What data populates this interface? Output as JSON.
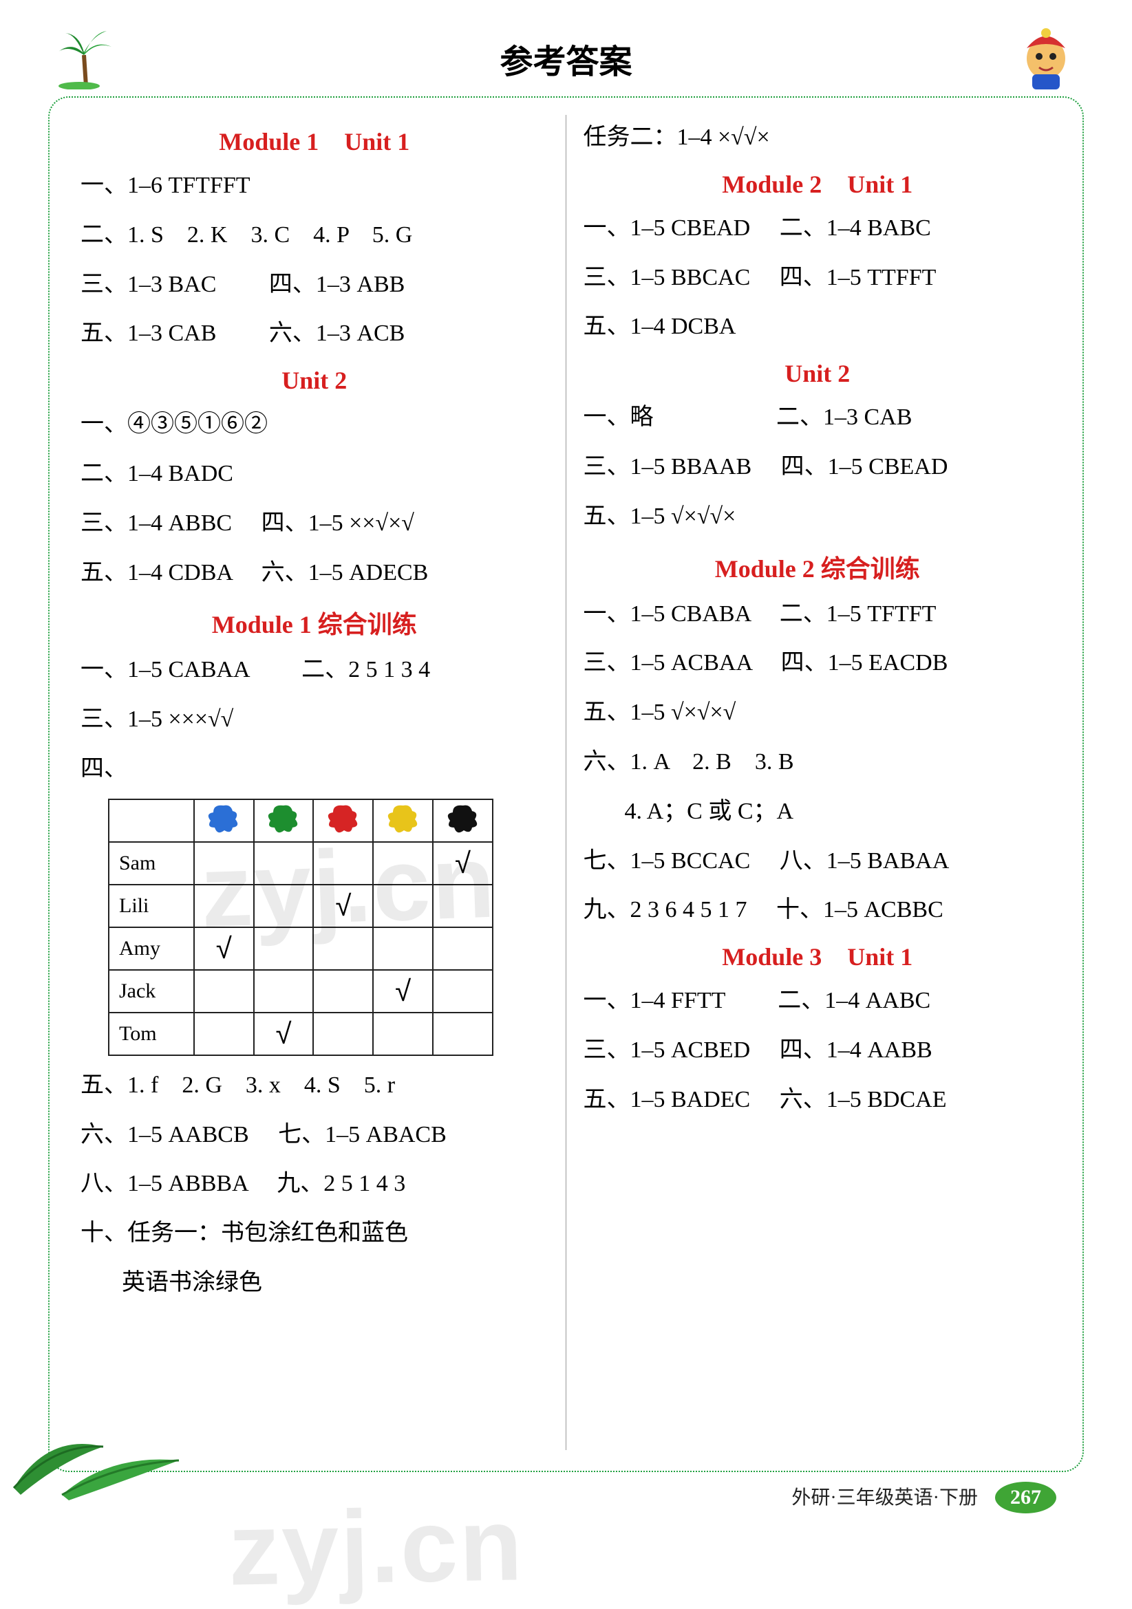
{
  "page_title": "参考答案",
  "watermark": "zyj.cn",
  "footer_text": "外研·三年级英语·下册",
  "page_number": "267",
  "headings": {
    "m1u1": {
      "module": "Module 1",
      "unit": "Unit 1"
    },
    "m1u2_unit": "Unit 2",
    "m1review": "Module 1 综合训练",
    "m2u1": {
      "module": "Module 2",
      "unit": "Unit 1"
    },
    "m2u2_unit": "Unit 2",
    "m2review": "Module 2 综合训练",
    "m3u1": {
      "module": "Module 3",
      "unit": "Unit 1"
    }
  },
  "left": {
    "l1": "一、1–6 TFTFFT",
    "l2": "二、1. S　2. K　3. C　4. P　5. G",
    "l3a": "三、1–3 BAC",
    "l3b": "四、1–3 ABB",
    "l4a": "五、1–3 CAB",
    "l4b": "六、1–3 ACB",
    "u2_l1": "一、④③⑤①⑥②",
    "u2_l2": "二、1–4 BADC",
    "u2_l3a": "三、1–4 ABBC",
    "u2_l3b": "四、1–5 ××√×√",
    "u2_l4a": "五、1–4 CDBA",
    "u2_l4b": "六、1–5 ADECB",
    "rv_l1a": "一、1–5 CABAA",
    "rv_l1b": "二、2 5 1 3 4",
    "rv_l2": "三、1–5 ×××√√",
    "rv_l3_prefix": "四、",
    "rv_l5": "五、1. f　2. G　3. x　4. S　5. r",
    "rv_l6a": "六、1–5 AABCB",
    "rv_l6b": "七、1–5 ABACB",
    "rv_l7a": "八、1–5 ABBBA",
    "rv_l7b": "九、2 5 1 4 3",
    "rv_l8": "十、任务一：书包涂红色和蓝色",
    "rv_l9": "英语书涂绿色"
  },
  "right": {
    "top": "任务二：1–4 ×√√×",
    "m2u1_l1a": "一、1–5 CBEAD",
    "m2u1_l1b": "二、1–4 BABC",
    "m2u1_l2a": "三、1–5 BBCAC",
    "m2u1_l2b": "四、1–5 TTFFT",
    "m2u1_l3": "五、1–4 DCBA",
    "m2u2_l1a": "一、略",
    "m2u2_l1b": "二、1–3 CAB",
    "m2u2_l2a": "三、1–5 BBAAB",
    "m2u2_l2b": "四、1–5 CBEAD",
    "m2u2_l3": "五、1–5 √×√√×",
    "rv_l1a": "一、1–5 CBABA",
    "rv_l1b": "二、1–5 TFTFT",
    "rv_l2a": "三、1–5 ACBAA",
    "rv_l2b": "四、1–5 EACDB",
    "rv_l3": "五、1–5 √×√×√",
    "rv_l4": "六、1. A　2. B　3. B",
    "rv_l5": "4. A；C 或 C；A",
    "rv_l6a": "七、1–5 BCCAC",
    "rv_l6b": "八、1–5 BABAA",
    "rv_l7a": "九、2 3 6 4 5 1 7",
    "rv_l7b": "十、1–5 ACBBC",
    "m3u1_l1a": "一、1–4 FFTT",
    "m3u1_l1b": "二、1–4 AABC",
    "m3u1_l2a": "三、1–5 ACBED",
    "m3u1_l2b": "四、1–4 AABB",
    "m3u1_l3a": "五、1–5 BADEC",
    "m3u1_l3b": "六、1–5 BDCAE"
  },
  "table": {
    "header_colors": [
      "#2b6fd6",
      "#1d8e2f",
      "#d62424",
      "#e8c41a",
      "#111111"
    ],
    "rows": [
      {
        "name": "Sam",
        "checks": [
          "",
          "",
          "",
          "",
          "√"
        ]
      },
      {
        "name": "Lili",
        "checks": [
          "",
          "",
          "√",
          "",
          ""
        ]
      },
      {
        "name": "Amy",
        "checks": [
          "√",
          "",
          "",
          "",
          ""
        ]
      },
      {
        "name": "Jack",
        "checks": [
          "",
          "",
          "",
          "√",
          ""
        ]
      },
      {
        "name": "Tom",
        "checks": [
          "",
          "√",
          "",
          "",
          ""
        ]
      }
    ]
  },
  "colors": {
    "heading_red": "#d71f1f",
    "border_green": "#1b9e3b",
    "pagenum_bg": "#3fa535",
    "text": "#000000"
  }
}
